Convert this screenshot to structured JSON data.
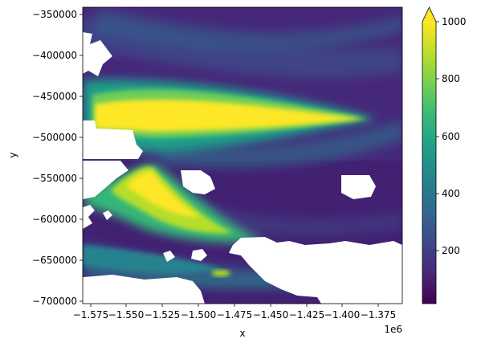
{
  "chart_data": {
    "type": "heatmap",
    "xlabel": "x",
    "ylabel": "y",
    "x_offset_label": "1e6",
    "xlim": [
      -1.583,
      -1.362
    ],
    "ylim": [
      -703000,
      -344000
    ],
    "x_ticks": [
      -1.575,
      -1.55,
      -1.525,
      -1.5,
      -1.475,
      -1.45,
      -1.425,
      -1.4,
      -1.375
    ],
    "x_tick_labels": [
      "−1.575",
      "−1.550",
      "−1.525",
      "−1.500",
      "−1.475",
      "−1.450",
      "−1.425",
      "−1.400",
      "−1.375"
    ],
    "y_ticks": [
      -350000,
      -400000,
      -450000,
      -500000,
      -550000,
      -600000,
      -650000,
      -700000
    ],
    "y_tick_labels": [
      "−350000",
      "−400000",
      "−450000",
      "−500000",
      "−550000",
      "−600000",
      "−650000",
      "−700000"
    ],
    "colorbar": {
      "range": [
        0,
        1000
      ],
      "extend": "max",
      "ticks": [
        200,
        400,
        600,
        800,
        1000
      ],
      "tick_labels": [
        "200",
        "400",
        "600",
        "800",
        "1000"
      ],
      "colormap": "viridis"
    },
    "colormap_stops": [
      "#440154",
      "#482878",
      "#3e4989",
      "#31688e",
      "#26828e",
      "#1f9e89",
      "#35b779",
      "#6ece58",
      "#b5de2b",
      "#fde725"
    ]
  }
}
